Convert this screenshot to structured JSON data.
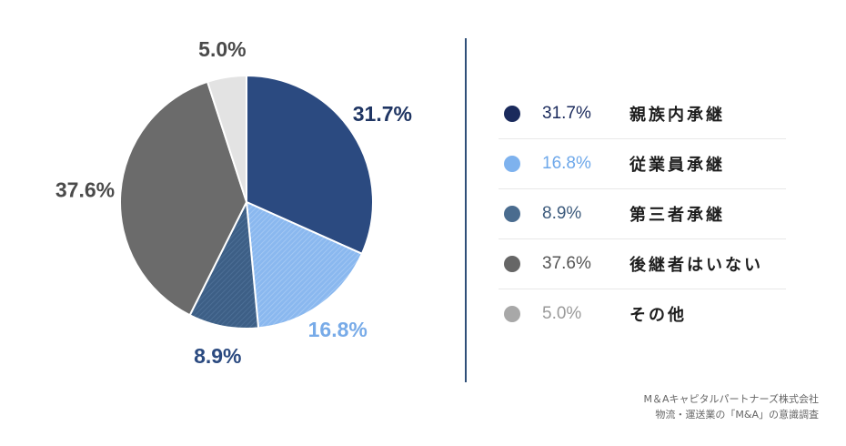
{
  "chart_data": {
    "type": "pie",
    "slices": [
      {
        "label": "親族内承継",
        "value": 31.7,
        "display": "31.7%",
        "color": "#2b4a80",
        "label_color": "#1f3563",
        "hatch": false
      },
      {
        "label": "従業員承継",
        "value": 16.8,
        "display": "16.8%",
        "color": "#8ab8ef",
        "label_color": "#78abe8",
        "hatch": true
      },
      {
        "label": "第三者承継",
        "value": 8.9,
        "display": "8.9%",
        "color": "#3d5f86",
        "label_color": "#2b4a80",
        "hatch": true
      },
      {
        "label": "後継者はいない",
        "value": 37.6,
        "display": "37.6%",
        "color": "#6b6b6b",
        "label_color": "#4a4a4a",
        "hatch": false
      },
      {
        "label": "その他",
        "value": 5.0,
        "display": "5.0%",
        "color": "#e3e3e3",
        "label_color": "#4a4a4a",
        "hatch": false
      }
    ]
  },
  "legend": [
    {
      "pct": "31.7%",
      "name": "親族内承継",
      "dot_color": "#1a2a5c",
      "pct_color": "#1a2a5c"
    },
    {
      "pct": "16.8%",
      "name": "従業員承継",
      "dot_color": "#7eb2ee",
      "pct_color": "#6ea8ea"
    },
    {
      "pct": "8.9%",
      "name": "第三者承継",
      "dot_color": "#4a6c8f",
      "pct_color": "#3c5a7c"
    },
    {
      "pct": "37.6%",
      "name": "後継者はいない",
      "dot_color": "#666666",
      "pct_color": "#555555"
    },
    {
      "pct": "5.0%",
      "name": "その他",
      "dot_color": "#a8a8a8",
      "pct_color": "#9a9a9a"
    }
  ],
  "source": {
    "line1": "M＆Aキャピタルパートナーズ株式会社",
    "line2": "物流・運送業の「M&A」の意識調査"
  }
}
